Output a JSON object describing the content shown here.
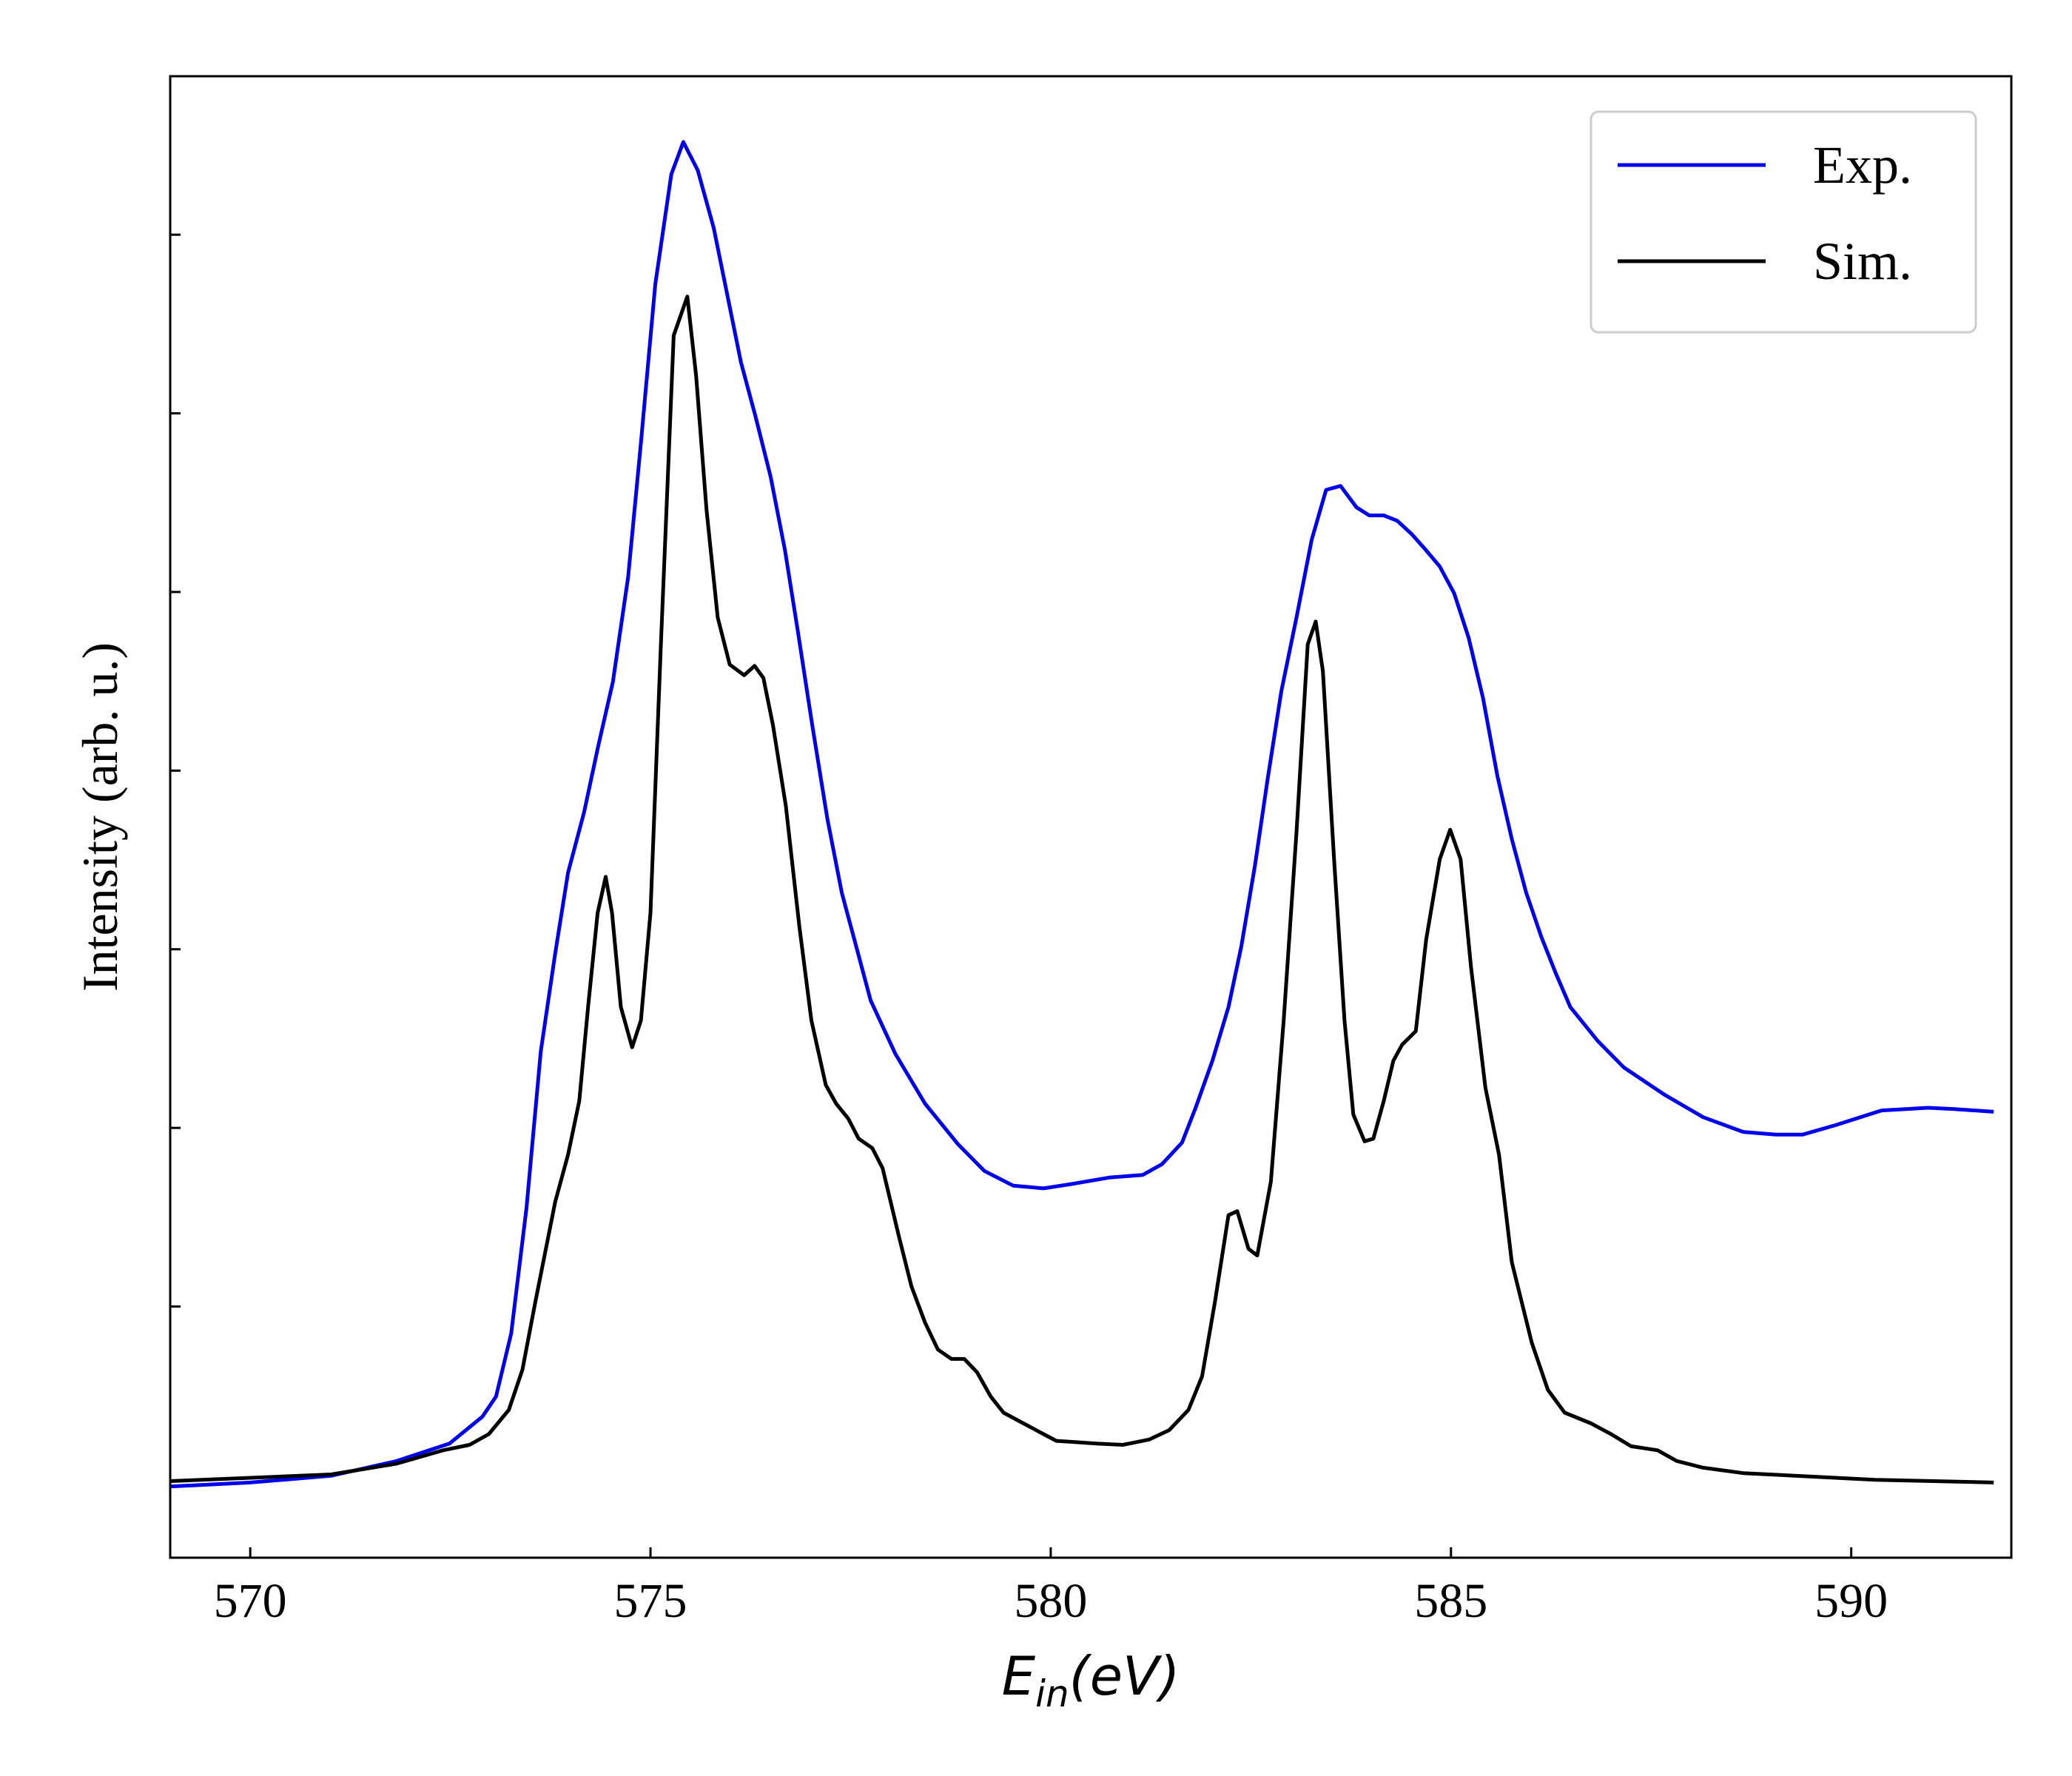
{
  "chart_data": {
    "type": "line",
    "xlabel": [
      "E",
      "in",
      "(eV)"
    ],
    "ylabel": "Intensity (arb. u.)",
    "xlim": [
      569,
      592
    ],
    "xticks": [
      570,
      575,
      580,
      585,
      590
    ],
    "ylim": [
      0,
      1103
    ],
    "yticks": [
      187,
      320,
      453,
      586,
      719,
      852,
      985
    ],
    "legend": "upper right",
    "series": [
      {
        "name": "Exp.",
        "color": "#0000ee",
        "x": [
          569.0,
          570.0,
          571.01,
          571.83,
          572.49,
          572.9,
          573.07,
          573.26,
          573.45,
          573.63,
          573.81,
          573.97,
          574.17,
          574.35,
          574.53,
          574.72,
          574.88,
          575.06,
          575.26,
          575.41,
          575.59,
          575.79,
          576.13,
          576.31,
          576.5,
          576.68,
          576.84,
          577.02,
          577.21,
          577.39,
          577.57,
          577.75,
          578.06,
          578.43,
          578.84,
          579.17,
          579.53,
          579.91,
          580.24,
          580.73,
          581.15,
          581.39,
          581.64,
          581.81,
          582.02,
          582.22,
          582.38,
          582.55,
          582.71,
          582.88,
          583.07,
          583.26,
          583.44,
          583.62,
          583.82,
          583.98,
          584.16,
          584.33,
          584.51,
          584.69,
          584.86,
          585.04,
          585.22,
          585.4,
          585.58,
          585.76,
          585.94,
          586.13,
          586.31,
          586.49,
          586.83,
          587.16,
          587.66,
          588.15,
          588.65,
          589.06,
          589.39,
          589.8,
          590.38,
          590.96,
          591.29,
          591.78
        ],
        "values": [
          53,
          56,
          61,
          72,
          85,
          105,
          120,
          167,
          260,
          377,
          450,
          510,
          555,
          605,
          652,
          730,
          830,
          948,
          1030,
          1054,
          1033,
          990,
          890,
          850,
          805,
          750,
          690,
          620,
          550,
          495,
          455,
          415,
          375,
          338,
          308,
          288,
          277,
          275,
          278,
          283,
          285,
          293,
          309,
          335,
          370,
          410,
          455,
          515,
          580,
          645,
          700,
          758,
          795,
          798,
          782,
          776,
          776,
          772,
          762,
          750,
          738,
          718,
          685,
          640,
          582,
          535,
          495,
          462,
          435,
          410,
          385,
          365,
          345,
          328,
          317,
          315,
          315,
          322,
          333,
          335,
          334,
          332
        ]
      },
      {
        "name": "Sim.",
        "color": "#000000",
        "x": [
          569.0,
          571.01,
          571.83,
          572.41,
          572.74,
          572.98,
          573.23,
          573.4,
          573.56,
          573.81,
          573.97,
          574.11,
          574.22,
          574.34,
          574.44,
          574.52,
          574.63,
          574.77,
          574.88,
          575.0,
          575.13,
          575.29,
          575.46,
          575.57,
          575.7,
          575.84,
          575.99,
          576.17,
          576.3,
          576.41,
          576.53,
          576.69,
          576.86,
          577.01,
          577.19,
          577.32,
          577.47,
          577.6,
          577.77,
          577.9,
          578.1,
          578.26,
          578.43,
          578.59,
          578.76,
          578.92,
          579.08,
          579.25,
          579.41,
          579.66,
          579.91,
          580.07,
          580.32,
          580.57,
          580.9,
          581.23,
          581.48,
          581.72,
          581.89,
          582.05,
          582.22,
          582.33,
          582.47,
          582.58,
          582.75,
          582.91,
          583.07,
          583.21,
          583.31,
          583.4,
          583.54,
          583.67,
          583.78,
          583.92,
          584.03,
          584.16,
          584.28,
          584.39,
          584.56,
          584.69,
          584.86,
          584.99,
          585.12,
          585.25,
          585.43,
          585.6,
          585.76,
          586.01,
          586.21,
          586.42,
          586.75,
          587.0,
          587.25,
          587.58,
          587.82,
          588.15,
          588.65,
          589.64,
          590.3,
          591.78
        ],
        "values": [
          57,
          62,
          70,
          80,
          84,
          92,
          110,
          140,
          190,
          265,
          300,
          340,
          410,
          480,
          507,
          480,
          410,
          380,
          400,
          480,
          680,
          910,
          939,
          880,
          780,
          700,
          665,
          657,
          664,
          655,
          620,
          560,
          470,
          400,
          352,
          338,
          327,
          312,
          305,
          290,
          240,
          202,
          175,
          155,
          148,
          148,
          138,
          120,
          108,
          100,
          92,
          87,
          86,
          85,
          84,
          88,
          95,
          110,
          135,
          190,
          255,
          258,
          230,
          225,
          280,
          400,
          540,
          680,
          697,
          660,
          520,
          400,
          330,
          310,
          312,
          340,
          370,
          382,
          392,
          460,
          520,
          542,
          520,
          440,
          350,
          300,
          220,
          160,
          125,
          108,
          100,
          92,
          83,
          80,
          72,
          67,
          63,
          60,
          58,
          56
        ]
      }
    ]
  }
}
